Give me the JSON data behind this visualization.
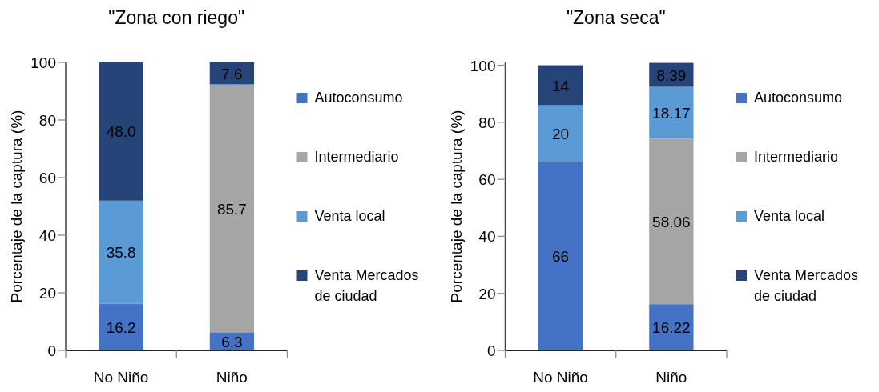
{
  "chart_data": [
    {
      "type": "bar",
      "title": "\"Zona con riego\"",
      "ylabel": "Porcentaje de la captura (%)",
      "categories": [
        "No Niño",
        "Niño"
      ],
      "stacked": true,
      "ylim": [
        0,
        100
      ],
      "yticks": [
        0,
        20,
        40,
        60,
        80,
        100
      ],
      "legend": "right",
      "series": [
        {
          "name": "Autoconsumo",
          "color": "#4472c4",
          "values": [
            16.2,
            6.3
          ],
          "value_labels": [
            "16.2",
            "6.3"
          ]
        },
        {
          "name": "Intermediario",
          "color": "#a5a5a5",
          "values": [
            0,
            85.7
          ],
          "value_labels": [
            null,
            "85.7"
          ]
        },
        {
          "name": "Venta local",
          "color": "#5b9bd5",
          "values": [
            35.8,
            0.4
          ],
          "value_labels": [
            "35.8",
            null
          ]
        },
        {
          "name": "Venta Mercados de ciudad",
          "color": "#264478",
          "values": [
            48.0,
            7.6
          ],
          "value_labels": [
            "48.0",
            "7.6"
          ]
        }
      ]
    },
    {
      "type": "bar",
      "title": "\"Zona seca\"",
      "ylabel": "Porcentaje de la captura (%)",
      "categories": [
        "No Niño",
        "Niño"
      ],
      "stacked": true,
      "ylim": [
        0,
        101
      ],
      "yticks": [
        0,
        20,
        40,
        60,
        80,
        100
      ],
      "legend": "right",
      "series": [
        {
          "name": "Autoconsumo",
          "color": "#4472c4",
          "values": [
            66,
            16.22
          ],
          "value_labels": [
            "66",
            "16.22"
          ]
        },
        {
          "name": "Intermediario",
          "color": "#a5a5a5",
          "values": [
            0,
            58.06
          ],
          "value_labels": [
            null,
            "58.06"
          ]
        },
        {
          "name": "Venta local",
          "color": "#5b9bd5",
          "values": [
            20,
            18.17
          ],
          "value_labels": [
            "20",
            "18.17"
          ]
        },
        {
          "name": "Venta Mercados de ciudad",
          "color": "#264478",
          "values": [
            14,
            8.39
          ],
          "value_labels": [
            "14",
            "8.39"
          ]
        }
      ]
    }
  ]
}
